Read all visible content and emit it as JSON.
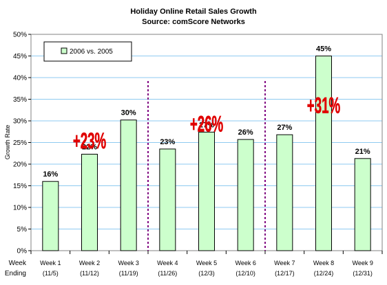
{
  "chart_data": {
    "type": "bar",
    "title": "Holiday Online Retail Sales Growth",
    "subtitle": "Source: comScore Networks",
    "ylabel": "Growth Rate",
    "xlabel_lines": [
      "Week",
      "Ending"
    ],
    "ylim": [
      0,
      50
    ],
    "yticks": [
      0,
      5,
      10,
      15,
      20,
      25,
      30,
      35,
      40,
      45,
      50
    ],
    "ytick_labels": [
      "0%",
      "5%",
      "10%",
      "15%",
      "20%",
      "25%",
      "30%",
      "35%",
      "40%",
      "45%",
      "50%"
    ],
    "grid": true,
    "legend_position": "top-left",
    "categories": [
      [
        "Week 1",
        "(11/5)"
      ],
      [
        "Week 2",
        "(11/12)"
      ],
      [
        "Week 3",
        "(11/19)"
      ],
      [
        "Week 4",
        "(11/26)"
      ],
      [
        "Week 5",
        "(12/3)"
      ],
      [
        "Week 6",
        "(12/10)"
      ],
      [
        "Week 7",
        "(12/17)"
      ],
      [
        "Week 8",
        "(12/24)"
      ],
      [
        "Week 9",
        "(12/31)"
      ]
    ],
    "series": [
      {
        "name": "2006 vs. 2005",
        "values": [
          16,
          22.3,
          30.2,
          23.5,
          27.4,
          25.7,
          26.8,
          45,
          21.3
        ],
        "data_labels": [
          "16%",
          "22%",
          "30%",
          "23%",
          "27%",
          "26%",
          "27%",
          "45%",
          "21%"
        ]
      }
    ],
    "annotations": [
      {
        "text": "+23%",
        "anchor_category": 1
      },
      {
        "text": "+26%",
        "anchor_category": 4
      },
      {
        "text": "+31%",
        "anchor_category": 7
      }
    ],
    "dividers_after_category": [
      2,
      5
    ],
    "colors": {
      "bar_fill": "#ccffcc",
      "bar_stroke": "#000000",
      "plot_background": "#ffffff",
      "gridline": "#8ecaf0",
      "annotation": "#e00000",
      "divider": "#800080"
    }
  }
}
